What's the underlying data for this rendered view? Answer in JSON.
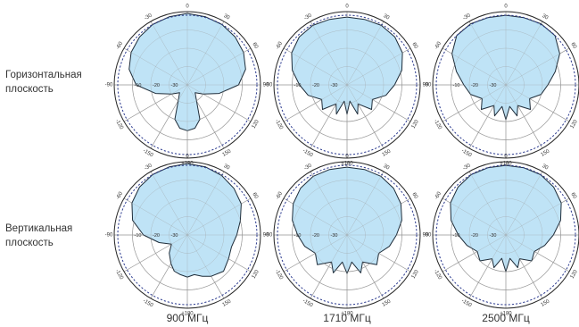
{
  "row_labels": [
    {
      "line1": "Горизонтальная",
      "line2": "плоскость"
    },
    {
      "line1": "Вертикальная",
      "line2": "плоскость"
    }
  ],
  "column_labels": [
    "900 МГц",
    "1710 МГц",
    "2500 МГц"
  ],
  "colors": {
    "pattern_fill": "#bfe3f6",
    "pattern_stroke": "#1f2d3a",
    "grid": "#9a9a9a",
    "reference_circle": "#2b3a8f"
  },
  "chart_data": [
    {
      "type": "polar",
      "plane": "Горизонтальная плоскость",
      "frequency": "900 МГц",
      "angle_ticks": [
        "0",
        "30",
        "60",
        "90",
        "120",
        "150",
        "±180",
        "-150",
        "-120",
        "-90",
        "-60",
        "-30"
      ],
      "radial_ticks": [
        "-10",
        "-20",
        "-30"
      ],
      "rlim_db": [
        -40,
        0
      ],
      "angles_deg": [
        0,
        15,
        30,
        45,
        60,
        75,
        90,
        105,
        120,
        135,
        150,
        160,
        170,
        180,
        190,
        200,
        210,
        225,
        240,
        255,
        270,
        285,
        300,
        315,
        330,
        345
      ],
      "gain_db": [
        -1,
        -1.5,
        -2,
        -3,
        -4.5,
        -7,
        -12,
        -22,
        -30,
        -34,
        -30,
        -20,
        -16,
        -15,
        -16,
        -20,
        -30,
        -34,
        -30,
        -22,
        -12,
        -7,
        -4.5,
        -3,
        -2,
        -1.5
      ]
    },
    {
      "type": "polar",
      "plane": "Горизонтальная плоскость",
      "frequency": "1710 МГц",
      "angle_ticks": [
        "0",
        "30",
        "60",
        "90",
        "120",
        "150",
        "±180",
        "-150",
        "-120",
        "-90",
        "-60",
        "-30"
      ],
      "radial_ticks": [
        "-10",
        "-20",
        "-30"
      ],
      "rlim_db": [
        -40,
        0
      ],
      "angles_deg": [
        0,
        15,
        30,
        45,
        60,
        75,
        90,
        105,
        120,
        135,
        150,
        160,
        170,
        180,
        190,
        200,
        210,
        225,
        240,
        255,
        270,
        285,
        300,
        315,
        330,
        345
      ],
      "gain_db": [
        -3,
        -3,
        -2.5,
        -3,
        -5,
        -9,
        -14,
        -18,
        -24,
        -21,
        -28,
        -23,
        -31,
        -24,
        -31,
        -23,
        -28,
        -21,
        -24,
        -18,
        -14,
        -9,
        -5,
        -3,
        -2.5,
        -3
      ]
    },
    {
      "type": "polar",
      "plane": "Горизонтальная плоскость",
      "frequency": "2500 МГц",
      "angle_ticks": [
        "0",
        "30",
        "60",
        "90",
        "120",
        "150",
        "±180",
        "-150",
        "-120",
        "-90",
        "-60",
        "-30"
      ],
      "radial_ticks": [
        "-10",
        "-20",
        "-30"
      ],
      "rlim_db": [
        -40,
        0
      ],
      "angles_deg": [
        0,
        15,
        30,
        45,
        60,
        75,
        90,
        105,
        120,
        135,
        150,
        160,
        170,
        180,
        190,
        200,
        210,
        225,
        240,
        255,
        270,
        285,
        300,
        315,
        330,
        345
      ],
      "gain_db": [
        -2,
        -2,
        -1.5,
        -2,
        -6,
        -12,
        -17,
        -20,
        -25,
        -21,
        -27,
        -22,
        -28,
        -21,
        -28,
        -22,
        -27,
        -21,
        -25,
        -20,
        -17,
        -12,
        -6,
        -2,
        -1.5,
        -2
      ]
    },
    {
      "type": "polar",
      "plane": "Вертикальная плоскость",
      "frequency": "900 МГц",
      "angle_ticks": [
        "0",
        "30",
        "60",
        "90",
        "120",
        "150",
        "±180",
        "-150",
        "-120",
        "-90",
        "-60",
        "-30"
      ],
      "radial_ticks": [
        "-10",
        "-20",
        "-30"
      ],
      "rlim_db": [
        -40,
        0
      ],
      "angles_deg": [
        0,
        15,
        30,
        45,
        60,
        75,
        90,
        105,
        120,
        135,
        150,
        160,
        170,
        180,
        190,
        200,
        210,
        225,
        240,
        255,
        270,
        285,
        300,
        315,
        330,
        345
      ],
      "gain_db": [
        -1,
        -1.5,
        -2.5,
        -4,
        -6,
        -10,
        -13,
        -15,
        -14,
        -12,
        -14,
        -16,
        -18,
        -17,
        -18,
        -19,
        -22,
        -26,
        -30,
        -24,
        -16,
        -9,
        -5,
        -3,
        -2,
        -1.5
      ]
    },
    {
      "type": "polar",
      "plane": "Вертикальная плоскость",
      "frequency": "1710 МГц",
      "angle_ticks": [
        "0",
        "30",
        "60",
        "90",
        "120",
        "150",
        "±180",
        "-150",
        "-120",
        "-90",
        "-60",
        "-30"
      ],
      "radial_ticks": [
        "-10",
        "-20",
        "-30"
      ],
      "rlim_db": [
        -40,
        0
      ],
      "angles_deg": [
        0,
        15,
        30,
        45,
        60,
        75,
        90,
        105,
        120,
        135,
        150,
        160,
        170,
        180,
        190,
        200,
        210,
        225,
        240,
        255,
        270,
        285,
        300,
        315,
        330,
        345
      ],
      "gain_db": [
        -3,
        -3,
        -3,
        -4,
        -6,
        -9,
        -13,
        -16,
        -20,
        -17,
        -23,
        -18,
        -25,
        -19,
        -25,
        -18,
        -23,
        -17,
        -20,
        -16,
        -13,
        -9,
        -6,
        -4,
        -3,
        -3
      ]
    },
    {
      "type": "polar",
      "plane": "Вертикальная плоскость",
      "frequency": "2500 МГц",
      "angle_ticks": [
        "0",
        "30",
        "60",
        "90",
        "120",
        "150",
        "±180",
        "-150",
        "-120",
        "-90",
        "-60",
        "-30"
      ],
      "radial_ticks": [
        "-10",
        "-20",
        "-30"
      ],
      "rlim_db": [
        -40,
        0
      ],
      "angles_deg": [
        0,
        15,
        30,
        45,
        60,
        75,
        90,
        105,
        120,
        135,
        150,
        160,
        170,
        180,
        190,
        200,
        210,
        225,
        240,
        255,
        270,
        285,
        300,
        315,
        330,
        345
      ],
      "gain_db": [
        -2,
        -2,
        -2,
        -3,
        -5,
        -9,
        -14,
        -18,
        -22,
        -20,
        -25,
        -21,
        -27,
        -20,
        -27,
        -21,
        -25,
        -20,
        -22,
        -18,
        -14,
        -9,
        -5,
        -3,
        -2,
        -2
      ]
    }
  ]
}
